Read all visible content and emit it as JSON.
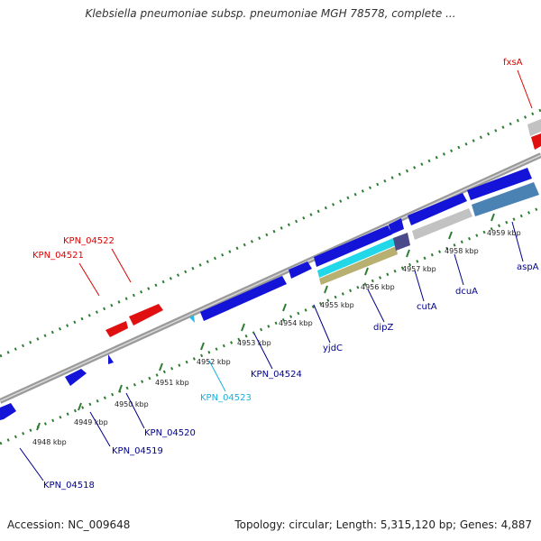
{
  "title": "Klebsiella pneumoniae subsp. pneumoniae MGH 78578, complete ...",
  "footer": {
    "accession": "Accession: NC_009648",
    "summary": "Topology: circular; Length: 5,315,120 bp; Genes: 4,887"
  },
  "colors": {
    "background": "#ffffff",
    "backbone": "#8a8a8a",
    "tick": "#2e7d32",
    "forward_gene": "#1414d8",
    "highlight_gene": "#e01010",
    "pseudo_gene": "#c2c2c2",
    "cyan_feature": "#22d8e8",
    "tan_feature": "#b8b070",
    "steel_feature": "#4a82b4",
    "label_blue": "#00008b",
    "label_red": "#e00000",
    "label_cyan": "#1ab0e0"
  },
  "coordinate_ticks": [
    {
      "label": "4948 kbp"
    },
    {
      "label": "4949 kbp"
    },
    {
      "label": "4950 kbp"
    },
    {
      "label": "4951 kbp"
    },
    {
      "label": "4952 kbp"
    },
    {
      "label": "4953 kbp"
    },
    {
      "label": "4954 kbp"
    },
    {
      "label": "4955 kbp"
    },
    {
      "label": "4956 kbp"
    },
    {
      "label": "4957 kbp"
    },
    {
      "label": "4958 kbp"
    },
    {
      "label": "4959 kbp"
    }
  ],
  "gene_labels": [
    {
      "text": "fxsA",
      "color": "red"
    },
    {
      "text": "KPN_04522",
      "color": "red"
    },
    {
      "text": "KPN_04521",
      "color": "red"
    },
    {
      "text": "KPN_04518",
      "color": "blue"
    },
    {
      "text": "KPN_04519",
      "color": "blue"
    },
    {
      "text": "KPN_04520",
      "color": "blue"
    },
    {
      "text": "KPN_04523",
      "color": "cyan"
    },
    {
      "text": "KPN_04524",
      "color": "blue"
    },
    {
      "text": "yjdC",
      "color": "blue"
    },
    {
      "text": "dipZ",
      "color": "blue"
    },
    {
      "text": "cutA",
      "color": "blue"
    },
    {
      "text": "dcuA",
      "color": "blue"
    },
    {
      "text": "aspA",
      "color": "blue"
    }
  ]
}
